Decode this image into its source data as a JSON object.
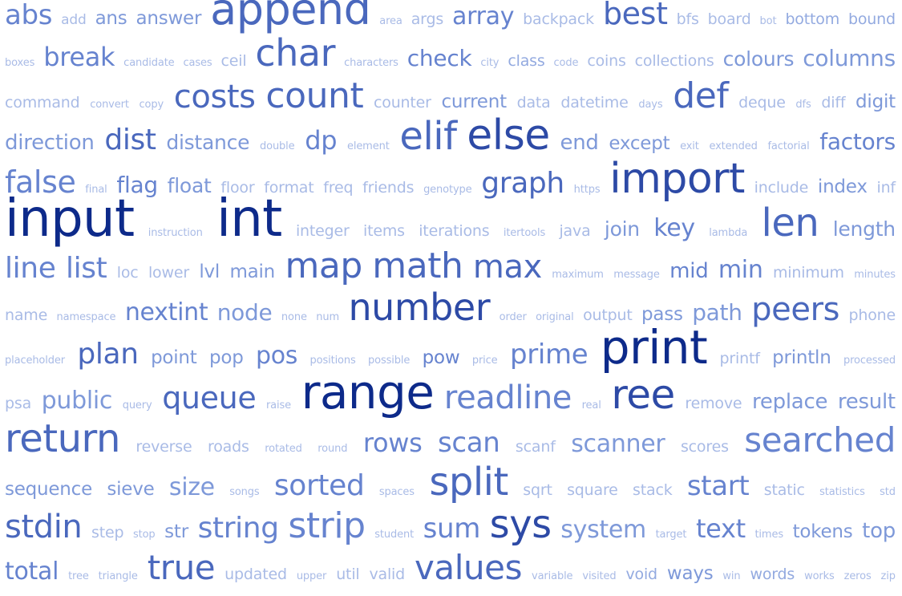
{
  "lines": [
    {
      "words": [
        [
          "abs",
          34,
          4
        ],
        [
          "add",
          17,
          1
        ],
        [
          "ans",
          23,
          3
        ],
        [
          "answer",
          23,
          3
        ],
        [
          "append",
          54,
          5
        ],
        [
          "area",
          13,
          1
        ],
        [
          "args",
          19,
          1
        ],
        [
          "array",
          30,
          4
        ],
        [
          "backpack",
          19,
          1
        ],
        [
          "best",
          38,
          5
        ],
        [
          "bfs",
          19,
          1
        ],
        [
          "board",
          19,
          1
        ],
        [
          "bot",
          13,
          1
        ],
        [
          "bottom",
          19,
          2
        ],
        [
          "bound",
          19,
          2
        ]
      ]
    },
    {
      "words": [
        [
          "boxes",
          13,
          1
        ],
        [
          "break",
          32,
          4
        ],
        [
          "candidate",
          13,
          1
        ],
        [
          "cases",
          13,
          1
        ],
        [
          "ceil",
          19,
          1
        ],
        [
          "char",
          46,
          5
        ],
        [
          "characters",
          13,
          1
        ],
        [
          "check",
          28,
          4
        ],
        [
          "city",
          13,
          1
        ],
        [
          "class",
          19,
          2
        ],
        [
          "code",
          13,
          1
        ],
        [
          "coins",
          19,
          1
        ],
        [
          "collections",
          19,
          1
        ],
        [
          "colours",
          25,
          3
        ],
        [
          "columns",
          28,
          3
        ]
      ]
    },
    {
      "words": [
        [
          "command",
          19,
          1
        ],
        [
          "convert",
          13,
          1
        ],
        [
          "copy",
          13,
          1
        ],
        [
          "costs",
          40,
          5
        ],
        [
          "count",
          44,
          5
        ],
        [
          "counter",
          19,
          1
        ],
        [
          "current",
          23,
          3
        ],
        [
          "data",
          19,
          1
        ],
        [
          "datetime",
          19,
          1
        ],
        [
          "days",
          13,
          1
        ],
        [
          "def",
          44,
          5
        ],
        [
          "deque",
          19,
          1
        ],
        [
          "dfs",
          13,
          1
        ],
        [
          "diff",
          19,
          1
        ],
        [
          "digit",
          23,
          3
        ]
      ]
    },
    {
      "words": [
        [
          "direction",
          26,
          3
        ],
        [
          "dist",
          36,
          5
        ],
        [
          "distance",
          25,
          3
        ],
        [
          "double",
          13,
          1
        ],
        [
          "dp",
          32,
          4
        ],
        [
          "element",
          13,
          1
        ],
        [
          "elif",
          48,
          5
        ],
        [
          "else",
          52,
          6
        ],
        [
          "end",
          26,
          3
        ],
        [
          "except",
          23,
          3
        ],
        [
          "exit",
          13,
          1
        ],
        [
          "extended",
          13,
          1
        ],
        [
          "factorial",
          13,
          1
        ],
        [
          "factors",
          28,
          4
        ]
      ]
    },
    {
      "words": [
        [
          "false",
          38,
          4
        ],
        [
          "final",
          13,
          1
        ],
        [
          "flag",
          28,
          4
        ],
        [
          "float",
          25,
          3
        ],
        [
          "floor",
          19,
          1
        ],
        [
          "format",
          19,
          1
        ],
        [
          "freq",
          19,
          1
        ],
        [
          "friends",
          19,
          1
        ],
        [
          "genotype",
          13,
          1
        ],
        [
          "graph",
          36,
          5
        ],
        [
          "https",
          13,
          1
        ],
        [
          "import",
          52,
          6
        ],
        [
          "include",
          19,
          1
        ],
        [
          "index",
          23,
          3
        ],
        [
          "inf",
          19,
          1
        ]
      ]
    },
    {
      "words": [
        [
          "input",
          64,
          7
        ],
        [
          "instruction",
          13,
          1
        ],
        [
          "int",
          64,
          7
        ],
        [
          "integer",
          19,
          1
        ],
        [
          "items",
          19,
          1
        ],
        [
          "iterations",
          19,
          1
        ],
        [
          "itertools",
          13,
          1
        ],
        [
          "java",
          19,
          1
        ],
        [
          "join",
          25,
          3
        ],
        [
          "key",
          30,
          4
        ],
        [
          "lambda",
          13,
          1
        ],
        [
          "len",
          48,
          5
        ],
        [
          "length",
          25,
          3
        ]
      ]
    },
    {
      "words": [
        [
          "line",
          36,
          4
        ],
        [
          "list",
          36,
          4
        ],
        [
          "loc",
          19,
          1
        ],
        [
          "lower",
          19,
          1
        ],
        [
          "lvl",
          23,
          3
        ],
        [
          "main",
          23,
          3
        ],
        [
          "map",
          44,
          5
        ],
        [
          "math",
          44,
          5
        ],
        [
          "max",
          40,
          5
        ],
        [
          "maximum",
          13,
          1
        ],
        [
          "message",
          13,
          1
        ],
        [
          "mid",
          26,
          4
        ],
        [
          "min",
          30,
          4
        ],
        [
          "minimum",
          19,
          1
        ],
        [
          "minutes",
          13,
          1
        ]
      ]
    },
    {
      "words": [
        [
          "name",
          19,
          1
        ],
        [
          "namespace",
          13,
          1
        ],
        [
          "nextint",
          30,
          4
        ],
        [
          "node",
          28,
          3
        ],
        [
          "none",
          13,
          1
        ],
        [
          "num",
          13,
          1
        ],
        [
          "number",
          46,
          6
        ],
        [
          "order",
          13,
          1
        ],
        [
          "original",
          13,
          1
        ],
        [
          "output",
          19,
          1
        ],
        [
          "pass",
          23,
          3
        ],
        [
          "path",
          28,
          3
        ],
        [
          "peers",
          40,
          5
        ],
        [
          "phone",
          19,
          1
        ]
      ]
    },
    {
      "words": [
        [
          "placeholder",
          13,
          1
        ],
        [
          "plan",
          36,
          5
        ],
        [
          "point",
          23,
          3
        ],
        [
          "pop",
          23,
          3
        ],
        [
          "pos",
          30,
          4
        ],
        [
          "positions",
          13,
          1
        ],
        [
          "possible",
          13,
          1
        ],
        [
          "pow",
          23,
          4
        ],
        [
          "price",
          13,
          1
        ],
        [
          "prime",
          34,
          4
        ],
        [
          "print",
          58,
          7
        ],
        [
          "printf",
          19,
          1
        ],
        [
          "println",
          23,
          3
        ],
        [
          "processed",
          13,
          1
        ]
      ]
    },
    {
      "words": [
        [
          "psa",
          19,
          1
        ],
        [
          "public",
          30,
          3
        ],
        [
          "query",
          13,
          1
        ],
        [
          "queue",
          38,
          5
        ],
        [
          "raise",
          13,
          1
        ],
        [
          "range",
          58,
          7
        ],
        [
          "readline",
          40,
          4
        ],
        [
          "real",
          13,
          1
        ],
        [
          "ree",
          50,
          6
        ],
        [
          "remove",
          19,
          1
        ],
        [
          "replace",
          26,
          3
        ],
        [
          "result",
          26,
          3
        ]
      ]
    },
    {
      "words": [
        [
          "return",
          48,
          5
        ],
        [
          "reverse",
          19,
          1
        ],
        [
          "roads",
          19,
          1
        ],
        [
          "rotated",
          13,
          1
        ],
        [
          "round",
          13,
          1
        ],
        [
          "rows",
          32,
          4
        ],
        [
          "scan",
          34,
          4
        ],
        [
          "scanf",
          19,
          1
        ],
        [
          "scanner",
          30,
          3
        ],
        [
          "scores",
          19,
          1
        ],
        [
          "searched",
          42,
          4
        ]
      ]
    },
    {
      "words": [
        [
          "sequence",
          23,
          3
        ],
        [
          "sieve",
          23,
          3
        ],
        [
          "size",
          30,
          3
        ],
        [
          "songs",
          13,
          1
        ],
        [
          "sorted",
          36,
          4
        ],
        [
          "spaces",
          13,
          1
        ],
        [
          "split",
          48,
          5
        ],
        [
          "sqrt",
          19,
          1
        ],
        [
          "square",
          19,
          1
        ],
        [
          "stack",
          19,
          1
        ],
        [
          "start",
          34,
          4
        ],
        [
          "static",
          19,
          1
        ],
        [
          "statistics",
          13,
          1
        ],
        [
          "std",
          13,
          1
        ]
      ]
    },
    {
      "words": [
        [
          "stdin",
          40,
          5
        ],
        [
          "step",
          19,
          1
        ],
        [
          "stop",
          13,
          1
        ],
        [
          "str",
          23,
          3
        ],
        [
          "string",
          36,
          4
        ],
        [
          "strip",
          44,
          4
        ],
        [
          "student",
          13,
          1
        ],
        [
          "sum",
          34,
          4
        ],
        [
          "sys",
          48,
          6
        ],
        [
          "system",
          30,
          3
        ],
        [
          "target",
          13,
          1
        ],
        [
          "text",
          32,
          4
        ],
        [
          "times",
          13,
          1
        ],
        [
          "tokens",
          23,
          3
        ],
        [
          "top",
          26,
          3
        ]
      ]
    },
    {
      "words": [
        [
          "total",
          30,
          4
        ],
        [
          "tree",
          13,
          1
        ],
        [
          "triangle",
          13,
          1
        ],
        [
          "true",
          42,
          5
        ],
        [
          "updated",
          19,
          1
        ],
        [
          "upper",
          13,
          1
        ],
        [
          "util",
          19,
          1
        ],
        [
          "valid",
          19,
          1
        ],
        [
          "values",
          42,
          5
        ],
        [
          "variable",
          13,
          1
        ],
        [
          "visited",
          13,
          1
        ],
        [
          "void",
          19,
          2
        ],
        [
          "ways",
          23,
          3
        ],
        [
          "win",
          13,
          1
        ],
        [
          "words",
          19,
          2
        ],
        [
          "works",
          13,
          1
        ],
        [
          "zeros",
          13,
          1
        ],
        [
          "zip",
          13,
          1
        ]
      ]
    }
  ],
  "palette": [
    "#d3dcf2",
    "#a9bbe6",
    "#93aae0",
    "#7e99d9",
    "#6683cf",
    "#4a68bd",
    "#2d4aa6",
    "#0d2a8a"
  ]
}
